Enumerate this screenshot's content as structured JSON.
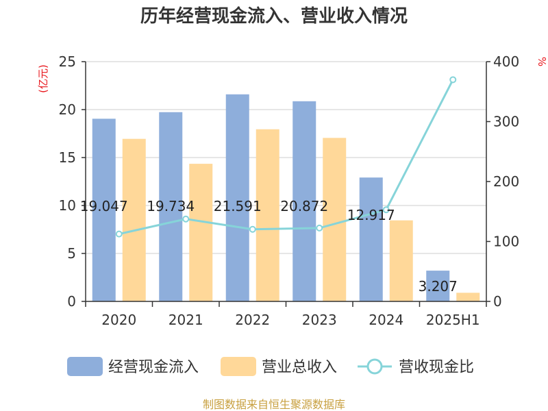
{
  "title": "历年经营现金流入、营业收入情况",
  "left_unit": "(亿元)",
  "right_unit": "%",
  "source": "制图数据来自恒生聚源数据库",
  "colors": {
    "cash_bar": "#8eaedb",
    "revenue_bar": "#ffd899",
    "ratio_line": "#86d4d9",
    "unit_red": "#e8141a",
    "source_gold": "#c8a040"
  },
  "chart_data": {
    "type": "bar",
    "categories": [
      "2020",
      "2021",
      "2022",
      "2023",
      "2024",
      "2025H1"
    ],
    "series": [
      {
        "name": "经营现金流入",
        "axis": "left",
        "kind": "bar",
        "values": [
          19.047,
          19.734,
          21.591,
          20.872,
          12.917,
          3.207
        ],
        "labels": [
          "19.047",
          "19.734",
          "21.591",
          "20.872",
          "12.917",
          "3.207"
        ]
      },
      {
        "name": "营业总收入",
        "axis": "left",
        "kind": "bar",
        "values": [
          16.95,
          14.35,
          17.95,
          17.05,
          8.45,
          0.9
        ]
      },
      {
        "name": "营收现金比",
        "axis": "right",
        "kind": "line",
        "values": [
          112.4,
          137.5,
          120.3,
          122.4,
          152.9,
          369.9
        ]
      }
    ],
    "left_axis": {
      "ylim": [
        0,
        25
      ],
      "ticks": [
        "0",
        "5",
        "10",
        "15",
        "20",
        "25"
      ]
    },
    "right_axis": {
      "ylim": [
        0,
        400
      ],
      "ticks": [
        "0",
        "100",
        "200",
        "300",
        "400"
      ]
    },
    "grid": true,
    "legend": "bottom"
  }
}
